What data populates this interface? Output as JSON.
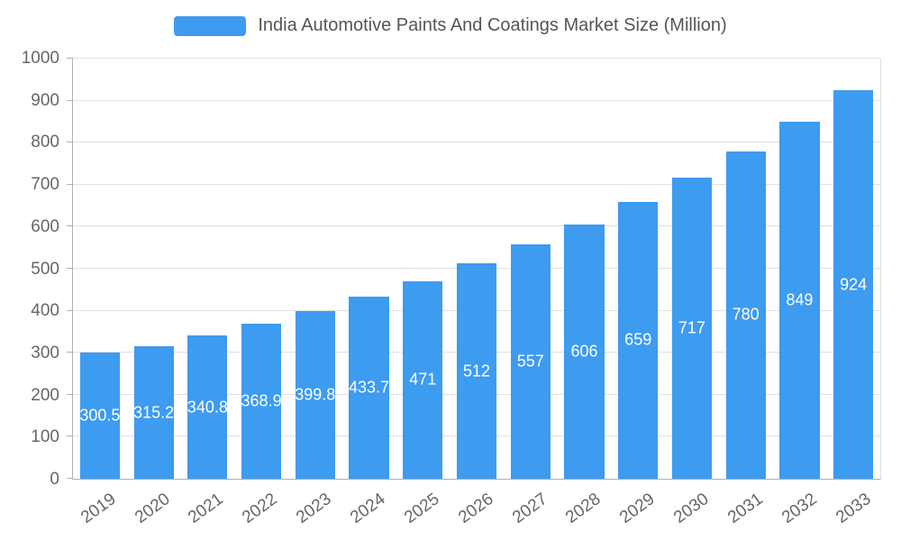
{
  "chart": {
    "legend_title": "India Automotive Paints And Coatings Market Size (Million)"
  },
  "chart_data": {
    "type": "bar",
    "title": "India Automotive Paints And Coatings Market Size (Million)",
    "categories": [
      "2019",
      "2020",
      "2021",
      "2022",
      "2023",
      "2024",
      "2025",
      "2026",
      "2027",
      "2028",
      "2029",
      "2030",
      "2031",
      "2032",
      "2033"
    ],
    "values": [
      300.5,
      315.2,
      340.8,
      368.9,
      399.8,
      433.7,
      471,
      512,
      557,
      606,
      659,
      717,
      780,
      849,
      924
    ],
    "value_labels": [
      "300.5",
      "315.2",
      "340.8",
      "368.9",
      "399.8",
      "433.7",
      "471",
      "512",
      "557",
      "606",
      "659",
      "717",
      "780",
      "849",
      "924"
    ],
    "xlabel": "",
    "ylabel": "",
    "ylim": [
      0,
      1000
    ],
    "ytick_step": 100,
    "ytick_labels": [
      "0",
      "100",
      "200",
      "300",
      "400",
      "500",
      "600",
      "700",
      "800",
      "900",
      "1000"
    ],
    "grid": true,
    "legend_position": "top",
    "bar_color": "#3d9bf0",
    "value_label_color": "#ffffff",
    "axis_text_color": "#666666",
    "grid_color": "#e0e0e0",
    "title_color": "#555555"
  }
}
